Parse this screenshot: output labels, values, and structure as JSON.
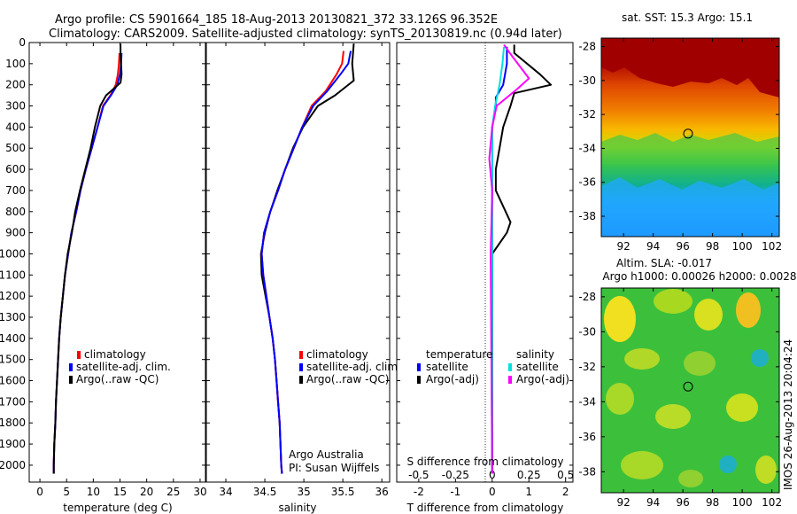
{
  "header": {
    "line1": "Argo profile: CS 5901664_185 18-Aug-2013 20130821_372 33.126S 96.352E",
    "line2": "Climatology: CARS2009. Satellite-adjusted climatology: synTS_20130819.nc (0.94d later)"
  },
  "colors": {
    "climatology": "#ff0000",
    "satellite": "#0000ff",
    "argo": "#000000",
    "sal_satellite": "#00e0e0",
    "sal_argo": "#ff00ff"
  },
  "legends": {
    "temp_panel": [
      "climatology",
      "satellite-adj. clim.",
      "Argo(..raw -QC)"
    ],
    "sal_panel": [
      "climatology",
      "satellite-adj. clim.",
      "Argo(..raw -QC)"
    ],
    "diff_panel": {
      "temperature_title": "temperature",
      "salinity_title": "salinity",
      "t_items": [
        "satellite",
        "Argo(-adj)"
      ],
      "s_items": [
        "satellite",
        "Argo(-adj)"
      ]
    }
  },
  "credits": {
    "line1": "Argo Australia",
    "line2": "PI: Susan Wijffels"
  },
  "map_titles": {
    "sst": "sat. SST: 15.3 Argo: 15.1",
    "sla_line1": "Altim. SLA: -0.017",
    "sla_line2": "Argo h1000: 0.00026 h2000: 0.0028"
  },
  "side_label": "IMOS 26-Aug-2013 20:04:24",
  "chart_data": [
    {
      "type": "line",
      "name": "temperature-profile",
      "xlabel": "temperature (deg C)",
      "xlim": [
        -2,
        31
      ],
      "xticks": [
        0,
        5,
        10,
        15,
        20,
        25,
        30
      ],
      "ylim": [
        0,
        2080
      ],
      "yticks": [
        0,
        100,
        200,
        300,
        400,
        500,
        600,
        700,
        800,
        900,
        1000,
        1100,
        1200,
        1300,
        1400,
        1500,
        1600,
        1700,
        1800,
        1900,
        2000
      ],
      "series": [
        {
          "name": "climatology",
          "color": "#ff0000",
          "points": [
            [
              14.9,
              50
            ],
            [
              14.8,
              100
            ],
            [
              14.6,
              150
            ],
            [
              14.2,
              200
            ],
            [
              13.2,
              250
            ],
            [
              11.8,
              300
            ],
            [
              10.8,
              400
            ],
            [
              9.7,
              500
            ],
            [
              8.6,
              600
            ],
            [
              7.6,
              700
            ],
            [
              6.8,
              800
            ],
            [
              5.9,
              900
            ],
            [
              5.3,
              1000
            ],
            [
              4.7,
              1100
            ],
            [
              4.3,
              1200
            ],
            [
              3.9,
              1300
            ],
            [
              3.6,
              1400
            ],
            [
              3.4,
              1500
            ],
            [
              3.2,
              1600
            ],
            [
              3.0,
              1700
            ],
            [
              2.9,
              1800
            ],
            [
              2.7,
              1900
            ],
            [
              2.6,
              2000
            ],
            [
              2.6,
              2040
            ]
          ]
        },
        {
          "name": "satellite-adj. clim.",
          "color": "#0000ff",
          "points": [
            [
              15.3,
              50
            ],
            [
              15.2,
              100
            ],
            [
              15.0,
              150
            ],
            [
              14.5,
              200
            ],
            [
              13.3,
              250
            ],
            [
              11.9,
              300
            ],
            [
              10.8,
              400
            ],
            [
              9.7,
              500
            ],
            [
              8.6,
              600
            ],
            [
              7.6,
              700
            ],
            [
              6.8,
              800
            ],
            [
              5.9,
              900
            ],
            [
              5.3,
              1000
            ],
            [
              4.7,
              1100
            ],
            [
              4.3,
              1200
            ],
            [
              3.9,
              1300
            ],
            [
              3.6,
              1400
            ],
            [
              3.4,
              1500
            ],
            [
              3.2,
              1600
            ],
            [
              3.0,
              1700
            ],
            [
              2.9,
              1800
            ],
            [
              2.7,
              1900
            ],
            [
              2.6,
              2000
            ],
            [
              2.6,
              2040
            ]
          ]
        },
        {
          "name": "Argo(..raw -QC)",
          "color": "#000000",
          "points": [
            [
              15.1,
              5
            ],
            [
              15.1,
              50
            ],
            [
              15.2,
              100
            ],
            [
              15.3,
              150
            ],
            [
              15.1,
              190
            ],
            [
              12.4,
              250
            ],
            [
              11.3,
              300
            ],
            [
              10.3,
              400
            ],
            [
              9.5,
              500
            ],
            [
              8.5,
              600
            ],
            [
              7.5,
              700
            ],
            [
              6.6,
              800
            ],
            [
              6.0,
              900
            ],
            [
              5.2,
              1000
            ],
            [
              4.7,
              1100
            ],
            [
              4.3,
              1200
            ],
            [
              3.9,
              1300
            ],
            [
              3.6,
              1400
            ],
            [
              3.4,
              1500
            ],
            [
              3.2,
              1600
            ],
            [
              3.0,
              1700
            ],
            [
              2.9,
              1800
            ],
            [
              2.7,
              1900
            ],
            [
              2.6,
              2000
            ],
            [
              2.6,
              2040
            ]
          ]
        }
      ]
    },
    {
      "type": "line",
      "name": "salinity-profile",
      "xlabel": "salinity",
      "xlim": [
        33.75,
        36.1
      ],
      "xticks": [
        34,
        34.5,
        35,
        35.5,
        36
      ],
      "ylim": [
        0,
        2080
      ],
      "yticks": [
        0,
        100,
        200,
        300,
        400,
        500,
        600,
        700,
        800,
        900,
        1000,
        1100,
        1200,
        1300,
        1400,
        1500,
        1600,
        1700,
        1800,
        1900,
        2000
      ],
      "series": [
        {
          "name": "climatology",
          "color": "#ff0000",
          "points": [
            [
              35.51,
              40
            ],
            [
              35.49,
              100
            ],
            [
              35.42,
              150
            ],
            [
              35.28,
              230
            ],
            [
              35.1,
              300
            ],
            [
              34.98,
              400
            ],
            [
              34.87,
              500
            ],
            [
              34.76,
              600
            ],
            [
              34.67,
              700
            ],
            [
              34.57,
              800
            ],
            [
              34.49,
              900
            ],
            [
              34.46,
              1000
            ],
            [
              34.48,
              1100
            ],
            [
              34.52,
              1200
            ],
            [
              34.56,
              1300
            ],
            [
              34.6,
              1400
            ],
            [
              34.63,
              1500
            ],
            [
              34.65,
              1600
            ],
            [
              34.67,
              1700
            ],
            [
              34.69,
              1800
            ],
            [
              34.7,
              1900
            ],
            [
              34.71,
              2000
            ],
            [
              34.72,
              2040
            ]
          ]
        },
        {
          "name": "satellite-adj. clim.",
          "color": "#0000ff",
          "points": [
            [
              35.6,
              40
            ],
            [
              35.57,
              100
            ],
            [
              35.47,
              150
            ],
            [
              35.3,
              230
            ],
            [
              35.12,
              300
            ],
            [
              34.98,
              400
            ],
            [
              34.87,
              500
            ],
            [
              34.76,
              600
            ],
            [
              34.67,
              700
            ],
            [
              34.57,
              800
            ],
            [
              34.49,
              900
            ],
            [
              34.46,
              1000
            ],
            [
              34.48,
              1100
            ],
            [
              34.52,
              1200
            ],
            [
              34.56,
              1300
            ],
            [
              34.6,
              1400
            ],
            [
              34.63,
              1500
            ],
            [
              34.65,
              1600
            ],
            [
              34.67,
              1700
            ],
            [
              34.69,
              1800
            ],
            [
              34.7,
              1900
            ],
            [
              34.71,
              2000
            ],
            [
              34.72,
              2040
            ]
          ]
        },
        {
          "name": "Argo(..raw -QC)",
          "color": "#000000",
          "points": [
            [
              35.64,
              5
            ],
            [
              35.62,
              100
            ],
            [
              35.64,
              180
            ],
            [
              35.4,
              250
            ],
            [
              35.18,
              300
            ],
            [
              34.99,
              400
            ],
            [
              34.86,
              500
            ],
            [
              34.76,
              600
            ],
            [
              34.66,
              700
            ],
            [
              34.57,
              800
            ],
            [
              34.5,
              900
            ],
            [
              34.45,
              1000
            ],
            [
              34.46,
              1100
            ],
            [
              34.51,
              1200
            ],
            [
              34.56,
              1300
            ],
            [
              34.6,
              1400
            ],
            [
              34.63,
              1500
            ],
            [
              34.65,
              1600
            ],
            [
              34.67,
              1700
            ],
            [
              34.69,
              1800
            ],
            [
              34.7,
              1900
            ],
            [
              34.71,
              2000
            ],
            [
              34.72,
              2040
            ]
          ]
        }
      ]
    },
    {
      "type": "line",
      "name": "difference-profile",
      "xlabel": "T difference from climatology",
      "x2label": "S difference from climatology",
      "xlim": [
        -2.6,
        2.2
      ],
      "xticks": [
        -2,
        -1,
        0,
        1,
        2
      ],
      "x2ticks": [
        -0.5,
        -0.25,
        0,
        0.25,
        0.5
      ],
      "ylim": [
        0,
        2080
      ],
      "yticks": [
        0,
        100,
        200,
        300,
        400,
        500,
        600,
        700,
        800,
        900,
        1000,
        1100,
        1200,
        1300,
        1400,
        1500,
        1600,
        1700,
        1800,
        1900,
        2000
      ],
      "series": [
        {
          "name": "T satellite",
          "color": "#0000ff",
          "points": [
            [
              0.4,
              20
            ],
            [
              0.4,
              100
            ],
            [
              0.3,
              200
            ],
            [
              0.1,
              260
            ],
            [
              0.1,
              300
            ],
            [
              0,
              400
            ],
            [
              0,
              500
            ],
            [
              0,
              2040
            ]
          ]
        },
        {
          "name": "T Argo(-adj)",
          "color": "#000000",
          "points": [
            [
              0.6,
              10
            ],
            [
              0.6,
              50
            ],
            [
              1.3,
              150
            ],
            [
              1.6,
              200
            ],
            [
              0.6,
              240
            ],
            [
              0.5,
              300
            ],
            [
              0.3,
              400
            ],
            [
              0.2,
              500
            ],
            [
              0.1,
              600
            ],
            [
              0.1,
              700
            ],
            [
              0.5,
              850
            ],
            [
              0.4,
              900
            ],
            [
              0,
              1000
            ],
            [
              0,
              2040
            ]
          ]
        },
        {
          "name": "S satellite",
          "color": "#00e0e0",
          "points": [
            [
              0.08,
              20
            ],
            [
              0.07,
              100
            ],
            [
              0.05,
              200
            ],
            [
              0.02,
              300
            ],
            [
              0,
              400
            ],
            [
              0,
              2040
            ]
          ]
        },
        {
          "name": "S Argo(-adj)",
          "color": "#ff00ff",
          "points": [
            [
              0.08,
              10
            ],
            [
              0.12,
              50
            ],
            [
              0.25,
              170
            ],
            [
              0.17,
              220
            ],
            [
              0.03,
              300
            ],
            [
              0,
              400
            ],
            [
              -0.02,
              550
            ],
            [
              0,
              700
            ],
            [
              -0.01,
              1000
            ],
            [
              0,
              2040
            ]
          ]
        }
      ]
    },
    {
      "type": "heatmap",
      "name": "sst-map",
      "title": "sat. SST: 15.3 Argo: 15.1",
      "xlim": [
        90.5,
        102.5
      ],
      "ylim": [
        -39.2,
        -27.5
      ],
      "xticks": [
        92,
        94,
        96,
        98,
        100,
        102
      ],
      "yticks": [
        -38,
        -36,
        -34,
        -32,
        -30,
        -28
      ],
      "marker": {
        "lon": 96.35,
        "lat": -33.13
      }
    },
    {
      "type": "heatmap",
      "name": "sla-map",
      "xlim": [
        90.5,
        102.5
      ],
      "ylim": [
        -39.2,
        -27.5
      ],
      "xticks": [
        92,
        94,
        96,
        98,
        100,
        102
      ],
      "yticks": [
        -38,
        -36,
        -34,
        -32,
        -30,
        -28
      ],
      "marker": {
        "lon": 96.35,
        "lat": -33.13
      }
    }
  ]
}
